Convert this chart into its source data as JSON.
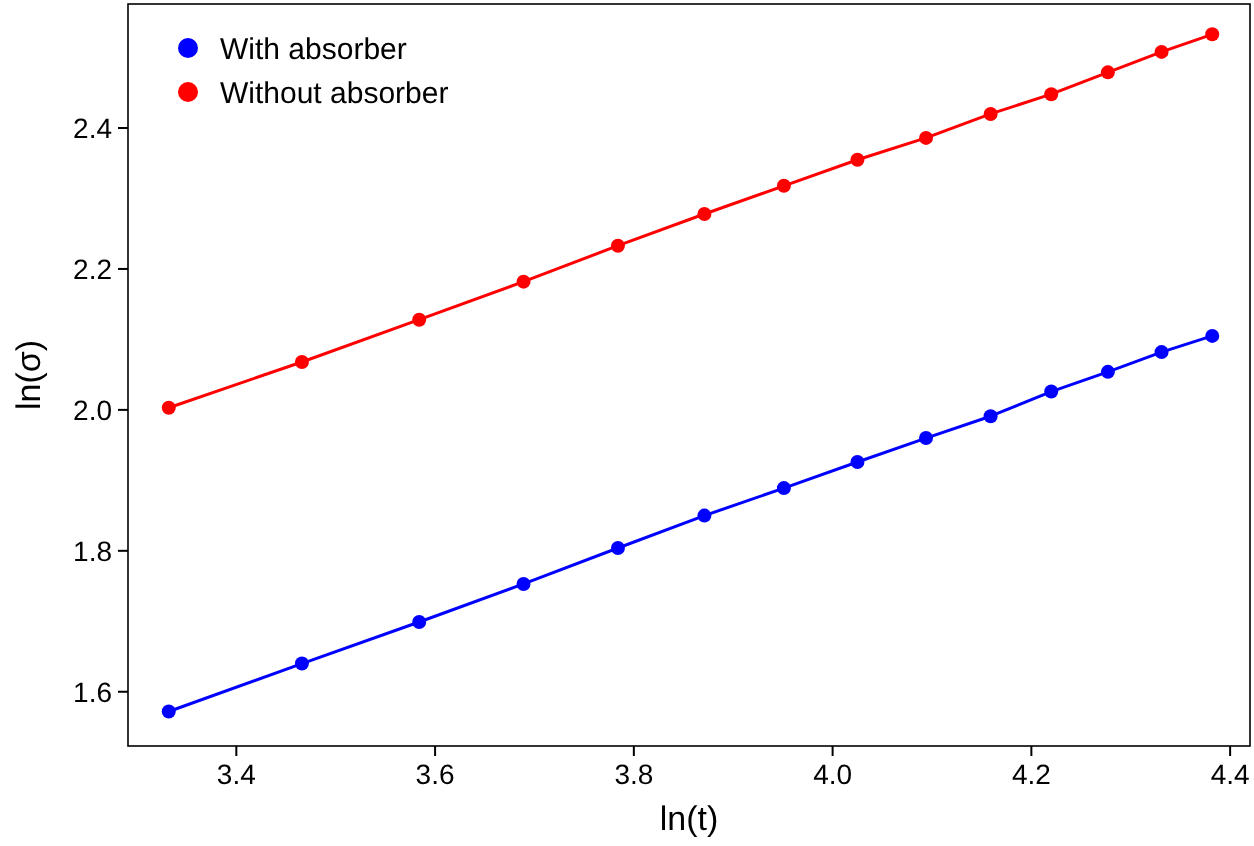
{
  "chart_data": {
    "type": "line",
    "xlabel": "ln(t)",
    "ylabel": "ln(σ)",
    "x": [
      3.332,
      3.466,
      3.584,
      3.689,
      3.784,
      3.871,
      3.951,
      4.025,
      4.094,
      4.159,
      4.22,
      4.277,
      4.331,
      4.382
    ],
    "series": [
      {
        "name": "With absorber",
        "color": "#0000ff",
        "values": [
          1.572,
          1.64,
          1.699,
          1.753,
          1.804,
          1.85,
          1.889,
          1.926,
          1.96,
          1.991,
          2.026,
          2.054,
          2.082,
          2.105
        ]
      },
      {
        "name": "Without absorber",
        "color": "#ff0000",
        "values": [
          2.003,
          2.068,
          2.128,
          2.182,
          2.233,
          2.278,
          2.318,
          2.355,
          2.386,
          2.42,
          2.448,
          2.479,
          2.508,
          2.533
        ]
      }
    ],
    "xlim": [
      3.291,
      4.42
    ],
    "ylim": [
      1.523,
      2.576
    ],
    "xticks": [
      3.4,
      3.6,
      3.8,
      {
        "value": 4,
        "label": "4.0"
      },
      4.2,
      4.4
    ],
    "yticks": [
      1.6,
      1.8,
      {
        "value": 2,
        "label": "2.0"
      },
      2.2,
      2.4
    ],
    "legend": "top left",
    "marker": "circle",
    "line_style": "solid",
    "grid": false
  }
}
